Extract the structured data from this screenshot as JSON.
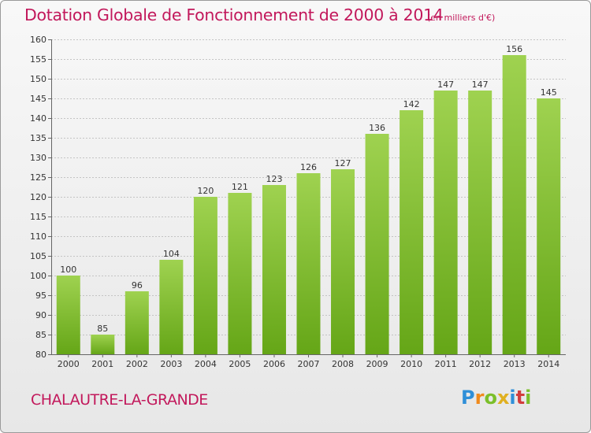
{
  "title": "Dotation Globale de Fonctionnement de 2000 à 2014",
  "subtitle": "(en milliers d'€)",
  "commune": "CHALAUTRE-LA-GRANDE",
  "logo": [
    "P",
    "r",
    "o",
    "x",
    "i",
    "t",
    "i"
  ],
  "colors": {
    "accent": "#c2185b",
    "bar_top": "#9fd250",
    "bar_bottom": "#65a617",
    "grid": "#c4c4c4"
  },
  "chart_data": {
    "type": "bar",
    "title": "Dotation Globale de Fonctionnement de 2000 à 2014",
    "subtitle": "(en milliers d'€)",
    "xlabel": "",
    "ylabel": "",
    "categories": [
      "2000",
      "2001",
      "2002",
      "2003",
      "2004",
      "2005",
      "2006",
      "2007",
      "2008",
      "2009",
      "2010",
      "2011",
      "2012",
      "2013",
      "2014"
    ],
    "values": [
      100,
      85,
      96,
      104,
      120,
      121,
      123,
      126,
      127,
      136,
      142,
      147,
      147,
      156,
      145
    ],
    "ylim": [
      80,
      160
    ],
    "yticks": [
      80,
      85,
      90,
      95,
      100,
      105,
      110,
      115,
      120,
      125,
      130,
      135,
      140,
      145,
      150,
      155,
      160
    ],
    "grid": true,
    "legend": "none"
  }
}
